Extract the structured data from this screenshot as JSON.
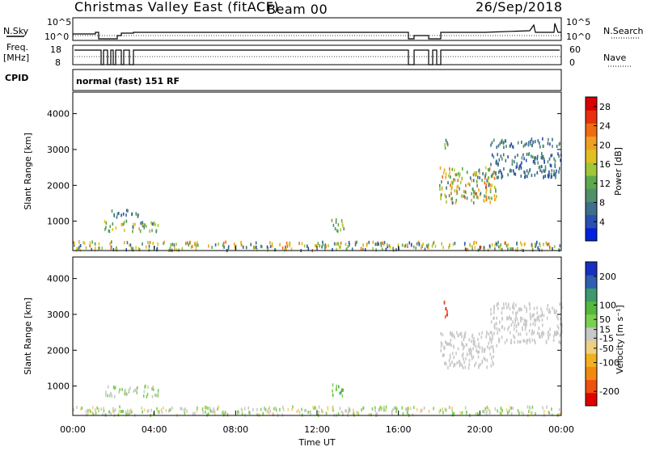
{
  "header": {
    "station_title": "Christmas Valley East (fitACF)",
    "beam": "Beam 00",
    "date": "26/Sep/2018"
  },
  "strip": {
    "nsky_label": "N.Sky",
    "nsearch_label": "N.Search",
    "noise_tick_top": "10^5",
    "noise_tick_bottom": "10^0",
    "freq_label_1": "Freq.",
    "freq_label_2": "[MHz]",
    "freq_tick_top": "18",
    "freq_tick_bottom": "8",
    "nave_label": "Nave",
    "nave_tick_top": "60",
    "nave_tick_bottom": "0",
    "cpid_label": "CPID",
    "cpid_value": "normal (fast) 151 RF"
  },
  "colors": {
    "power_scale": [
      "#0022dd",
      "#2b4fb0",
      "#3d6e8a",
      "#4f8f6a",
      "#5ea94e",
      "#9ec83a",
      "#e0c020",
      "#f0a020",
      "#f06c10",
      "#e83010",
      "#d80000"
    ],
    "velocity_scale": [
      "#e00000",
      "#f05010",
      "#f08a10",
      "#f0b020",
      "#f0d080",
      "#c8c8c8",
      "#7cd050",
      "#54b83c",
      "#3a9a6c",
      "#2f5fb0",
      "#1830c0"
    ],
    "ground_scatter": "#bbbbbb"
  },
  "chart_data": [
    {
      "type": "heatmap",
      "name": "power",
      "ylabel": "Slant Range [km]",
      "xlabel": "Time UT",
      "x_ticks": [
        "00:00",
        "04:00",
        "08:00",
        "12:00",
        "16:00",
        "20:00",
        "00:00"
      ],
      "y_ticks": [
        1000,
        2000,
        3000,
        4000
      ],
      "ylim": [
        180,
        4600
      ],
      "xlim_hours": [
        0,
        24
      ],
      "colorbar_label": "Power [dB]",
      "colorbar_ticks": [
        4,
        8,
        12,
        16,
        20,
        24,
        28
      ],
      "colorbar_range": [
        0,
        30
      ],
      "regions": [
        {
          "t0": 0.0,
          "t1": 24.0,
          "r0": 180,
          "r1": 420,
          "v0": 4,
          "v1": 24
        },
        {
          "t0": 1.5,
          "t1": 4.2,
          "r0": 700,
          "r1": 1000,
          "v0": 6,
          "v1": 20
        },
        {
          "t0": 1.8,
          "t1": 3.4,
          "r0": 1100,
          "r1": 1300,
          "v0": 4,
          "v1": 10
        },
        {
          "t0": 12.6,
          "t1": 13.3,
          "r0": 720,
          "r1": 1050,
          "v0": 8,
          "v1": 18
        },
        {
          "t0": 18.0,
          "t1": 20.8,
          "r0": 1500,
          "r1": 2500,
          "v0": 6,
          "v1": 24
        },
        {
          "t0": 20.5,
          "t1": 24.0,
          "r0": 2200,
          "r1": 2900,
          "v0": 4,
          "v1": 10
        },
        {
          "t0": 20.5,
          "t1": 24.0,
          "r0": 3050,
          "r1": 3300,
          "v0": 4,
          "v1": 10
        },
        {
          "t0": 18.2,
          "t1": 18.4,
          "r0": 2900,
          "r1": 3400,
          "v0": 6,
          "v1": 16
        }
      ]
    },
    {
      "type": "heatmap",
      "name": "velocity",
      "ylabel": "Slant Range [km]",
      "xlabel": "Time UT",
      "x_ticks": [
        "00:00",
        "04:00",
        "08:00",
        "12:00",
        "16:00",
        "20:00",
        "00:00"
      ],
      "y_ticks": [
        1000,
        2000,
        3000,
        4000
      ],
      "ylim": [
        180,
        4600
      ],
      "xlim_hours": [
        0,
        24
      ],
      "colorbar_label": "Velocity [m s⁻¹]",
      "colorbar_ticks": [
        -200,
        -100,
        -50,
        -15,
        15,
        50,
        100,
        200
      ],
      "colorbar_range": [
        -250,
        250
      ],
      "regions": [
        {
          "t0": 0.0,
          "t1": 24.0,
          "r0": 180,
          "r1": 420,
          "v0": -50,
          "v1": 60
        },
        {
          "t0": 1.5,
          "t1": 4.2,
          "r0": 700,
          "r1": 1000,
          "v0": -10,
          "v1": 60
        },
        {
          "t0": 12.6,
          "t1": 13.3,
          "r0": 720,
          "r1": 1050,
          "v0": 30,
          "v1": 120
        },
        {
          "t0": 18.0,
          "t1": 20.8,
          "r0": 1500,
          "r1": 2500,
          "v0": -10,
          "v1": 10
        },
        {
          "t0": 20.5,
          "t1": 24.0,
          "r0": 2200,
          "r1": 3300,
          "v0": -10,
          "v1": 10
        },
        {
          "t0": 18.2,
          "t1": 18.4,
          "r0": 2900,
          "r1": 3400,
          "v0": -230,
          "v1": -180
        }
      ]
    }
  ]
}
